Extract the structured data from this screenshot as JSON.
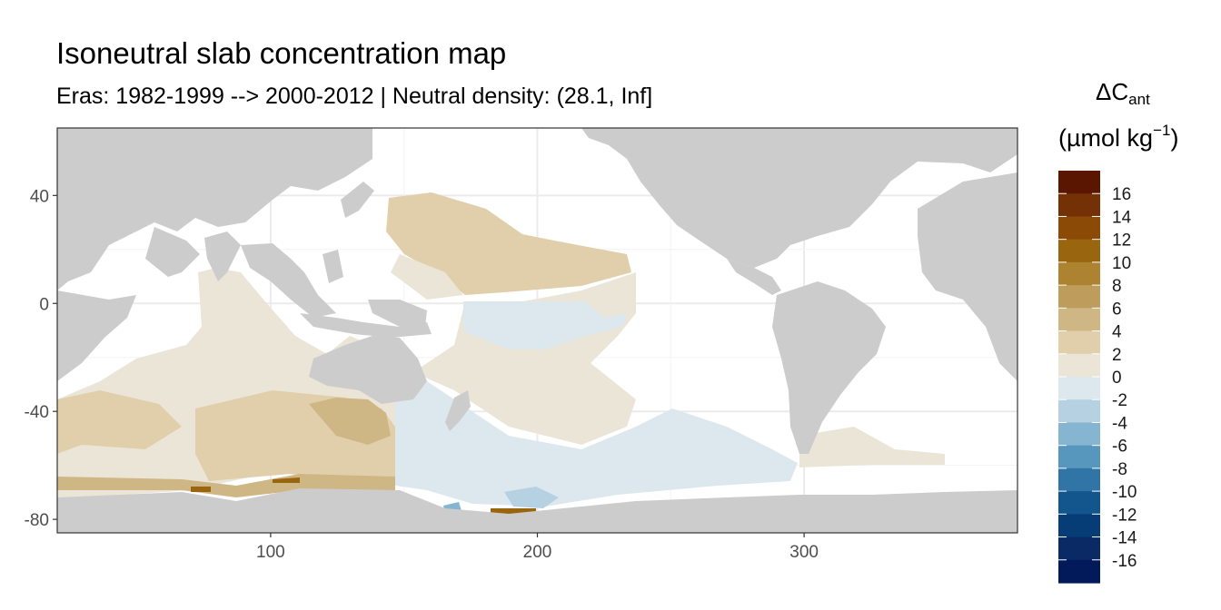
{
  "chart": {
    "title": "Isoneutral slab concentration map",
    "subtitle": "Eras: 1982-1999 --> 2000-2012 | Neutral density: (28.1, Inf]",
    "legend_title_main": "ΔC",
    "legend_title_sub": "ant",
    "legend_unit_pre": "(µmol kg",
    "legend_unit_sup": "−1",
    "legend_unit_post": ")"
  },
  "chart_data": {
    "type": "heatmap",
    "title": "Isoneutral slab concentration map",
    "subtitle": "Eras: 1982-1999 --> 2000-2012 | Neutral density: (28.1, Inf]",
    "xlabel": "",
    "ylabel": "",
    "xlim": [
      20,
      380
    ],
    "ylim": [
      -85,
      65
    ],
    "x_ticks": [
      100,
      200,
      300
    ],
    "y_ticks": [
      40,
      0,
      -40,
      -80
    ],
    "grid": true,
    "legend_position": "right",
    "legend_labels": [
      "16",
      "14",
      "12",
      "10",
      "8",
      "6",
      "4",
      "2",
      "0",
      "-2",
      "-4",
      "-6",
      "-8",
      "-10",
      "-12",
      "-14",
      "-16"
    ],
    "legend_colors": [
      "#5a1601",
      "#743105",
      "#8b4b06",
      "#9a650f",
      "#ad8230",
      "#bd9c5c",
      "#cfb685",
      "#e1cfac",
      "#ebe5d8",
      "#dde8ee",
      "#b5d1e2",
      "#86b5d1",
      "#5897bd",
      "#3175a6",
      "#12568d",
      "#063d76",
      "#0a2a66",
      "#021a5a"
    ],
    "land_color": "#cccccc",
    "ocean_nodata_color": "#ffffff"
  }
}
